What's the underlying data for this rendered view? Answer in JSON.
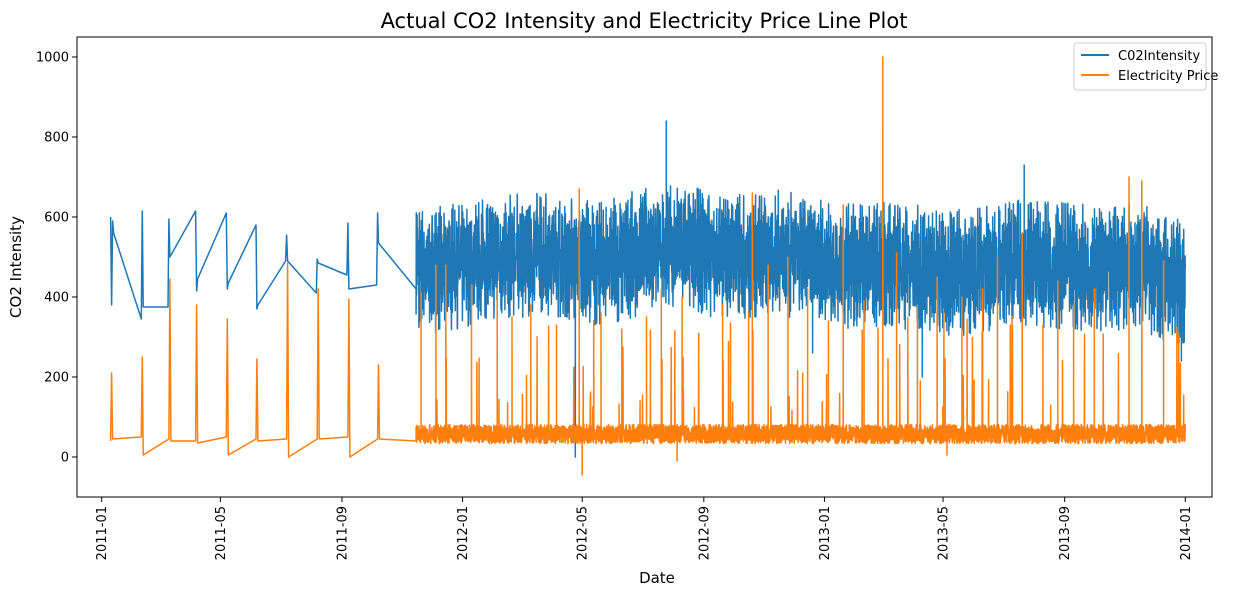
{
  "chart_data": {
    "type": "line",
    "title": "Actual CO2 Intensity and Electricity Price Line Plot",
    "xlabel": "Date",
    "ylabel": "CO2 Intensity",
    "xlim": [
      "2010-12-07",
      "2014-01-28"
    ],
    "ylim": [
      -100,
      1050
    ],
    "x_ticks": [
      "2011-01",
      "2011-05",
      "2011-09",
      "2012-01",
      "2012-05",
      "2012-09",
      "2013-01",
      "2013-05",
      "2013-09",
      "2014-01"
    ],
    "y_ticks": [
      0,
      200,
      400,
      600,
      800,
      1000
    ],
    "grid": false,
    "legend_position": "top-right",
    "noise_seed": 7,
    "series": [
      {
        "name": "C02Intensity",
        "color": "#1f77b4",
        "sparse_points": [
          [
            "2011-01-10",
            600
          ],
          [
            "2011-01-11",
            380
          ],
          [
            "2011-01-12",
            590
          ],
          [
            "2011-01-13",
            560
          ],
          [
            "2011-02-10",
            345
          ],
          [
            "2011-02-11",
            615
          ],
          [
            "2011-02-12",
            375
          ],
          [
            "2011-03-09",
            375
          ],
          [
            "2011-03-10",
            595
          ],
          [
            "2011-03-11",
            500
          ],
          [
            "2011-04-06",
            615
          ],
          [
            "2011-04-07",
            415
          ],
          [
            "2011-04-08",
            445
          ],
          [
            "2011-05-07",
            610
          ],
          [
            "2011-05-08",
            420
          ],
          [
            "2011-05-09",
            435
          ],
          [
            "2011-06-06",
            580
          ],
          [
            "2011-06-07",
            370
          ],
          [
            "2011-06-08",
            380
          ],
          [
            "2011-07-06",
            490
          ],
          [
            "2011-07-07",
            555
          ],
          [
            "2011-07-08",
            490
          ],
          [
            "2011-08-06",
            410
          ],
          [
            "2011-08-07",
            495
          ],
          [
            "2011-08-08",
            485
          ],
          [
            "2011-09-06",
            455
          ],
          [
            "2011-09-07",
            585
          ],
          [
            "2011-09-08",
            420
          ],
          [
            "2011-10-06",
            430
          ],
          [
            "2011-10-07",
            610
          ],
          [
            "2011-10-08",
            535
          ],
          [
            "2011-11-15",
            420
          ],
          [
            "2011-11-16",
            605
          ],
          [
            "2011-11-18",
            340
          ]
        ],
        "dense_start": "2011-11-15",
        "dense_end": "2014-01-01",
        "dense_monthly_base": [
          [
            "2011-11-15",
            470
          ],
          [
            "2011-12-15",
            470
          ],
          [
            "2012-01-15",
            490
          ],
          [
            "2012-02-15",
            500
          ],
          [
            "2012-03-15",
            510
          ],
          [
            "2012-04-15",
            500
          ],
          [
            "2012-05-15",
            480
          ],
          [
            "2012-06-15",
            500
          ],
          [
            "2012-07-15",
            530
          ],
          [
            "2012-08-15",
            520
          ],
          [
            "2012-09-15",
            505
          ],
          [
            "2012-10-15",
            500
          ],
          [
            "2012-11-15",
            515
          ],
          [
            "2012-12-15",
            490
          ],
          [
            "2013-01-15",
            480
          ],
          [
            "2013-02-15",
            480
          ],
          [
            "2013-03-15",
            480
          ],
          [
            "2013-04-15",
            470
          ],
          [
            "2013-05-15",
            460
          ],
          [
            "2013-06-15",
            470
          ],
          [
            "2013-07-15",
            490
          ],
          [
            "2013-08-15",
            480
          ],
          [
            "2013-09-15",
            475
          ],
          [
            "2013-10-15",
            470
          ],
          [
            "2013-11-15",
            480
          ],
          [
            "2013-12-15",
            440
          ]
        ],
        "dense_amplitude": 150,
        "dense_extremes": [
          [
            "2012-04-24",
            0
          ],
          [
            "2012-07-25",
            840
          ],
          [
            "2012-12-20",
            260
          ],
          [
            "2013-04-10",
            200
          ],
          [
            "2013-07-22",
            730
          ],
          [
            "2013-12-28",
            240
          ]
        ]
      },
      {
        "name": "Electricity Price",
        "color": "#ff7f0e",
        "sparse_points": [
          [
            "2011-01-10",
            40
          ],
          [
            "2011-01-11",
            210
          ],
          [
            "2011-01-12",
            45
          ],
          [
            "2011-02-10",
            50
          ],
          [
            "2011-02-11",
            250
          ],
          [
            "2011-02-12",
            5
          ],
          [
            "2011-03-10",
            45
          ],
          [
            "2011-03-11",
            445
          ],
          [
            "2011-03-12",
            40
          ],
          [
            "2011-04-06",
            40
          ],
          [
            "2011-04-07",
            380
          ],
          [
            "2011-04-08",
            35
          ],
          [
            "2011-05-07",
            50
          ],
          [
            "2011-05-08",
            345
          ],
          [
            "2011-05-09",
            5
          ],
          [
            "2011-06-06",
            45
          ],
          [
            "2011-06-07",
            245
          ],
          [
            "2011-06-08",
            40
          ],
          [
            "2011-07-07",
            45
          ],
          [
            "2011-07-08",
            485
          ],
          [
            "2011-07-09",
            0
          ],
          [
            "2011-08-07",
            45
          ],
          [
            "2011-08-08",
            420
          ],
          [
            "2011-08-09",
            45
          ],
          [
            "2011-09-07",
            50
          ],
          [
            "2011-09-08",
            395
          ],
          [
            "2011-09-09",
            0
          ],
          [
            "2011-10-07",
            45
          ],
          [
            "2011-10-08",
            230
          ],
          [
            "2011-10-09",
            45
          ],
          [
            "2011-11-15",
            40
          ]
        ],
        "dense_start": "2011-11-15",
        "dense_end": "2014-01-01",
        "dense_base": 55,
        "dense_amplitude": 40,
        "dense_spikes": [
          [
            "2011-11-20",
            410
          ],
          [
            "2011-12-05",
            480
          ],
          [
            "2011-12-15",
            480
          ],
          [
            "2012-01-10",
            430
          ],
          [
            "2012-02-05",
            420
          ],
          [
            "2012-02-20",
            350
          ],
          [
            "2012-03-10",
            380
          ],
          [
            "2012-04-05",
            330
          ],
          [
            "2012-04-28",
            670
          ],
          [
            "2012-05-20",
            360
          ],
          [
            "2012-06-10",
            320
          ],
          [
            "2012-07-05",
            350
          ],
          [
            "2012-07-20",
            420
          ],
          [
            "2012-08-10",
            400
          ],
          [
            "2012-09-20",
            380
          ],
          [
            "2012-10-20",
            660
          ],
          [
            "2012-11-05",
            480
          ],
          [
            "2012-11-25",
            500
          ],
          [
            "2012-12-15",
            420
          ],
          [
            "2013-01-05",
            340
          ],
          [
            "2013-01-20",
            630
          ],
          [
            "2013-02-10",
            390
          ],
          [
            "2013-03-01",
            1000
          ],
          [
            "2013-03-15",
            510
          ],
          [
            "2013-04-05",
            380
          ],
          [
            "2013-04-25",
            450
          ],
          [
            "2013-05-20",
            400
          ],
          [
            "2013-06-10",
            420
          ],
          [
            "2013-06-25",
            500
          ],
          [
            "2013-07-20",
            560
          ],
          [
            "2013-08-10",
            330
          ],
          [
            "2013-08-25",
            440
          ],
          [
            "2013-09-10",
            380
          ],
          [
            "2013-10-01",
            420
          ],
          [
            "2013-11-05",
            700
          ],
          [
            "2013-11-18",
            690
          ],
          [
            "2013-12-10",
            490
          ]
        ],
        "dense_extremes": [
          [
            "2012-05-01",
            -45
          ],
          [
            "2012-08-05",
            -10
          ],
          [
            "2013-05-05",
            5
          ]
        ]
      }
    ]
  }
}
